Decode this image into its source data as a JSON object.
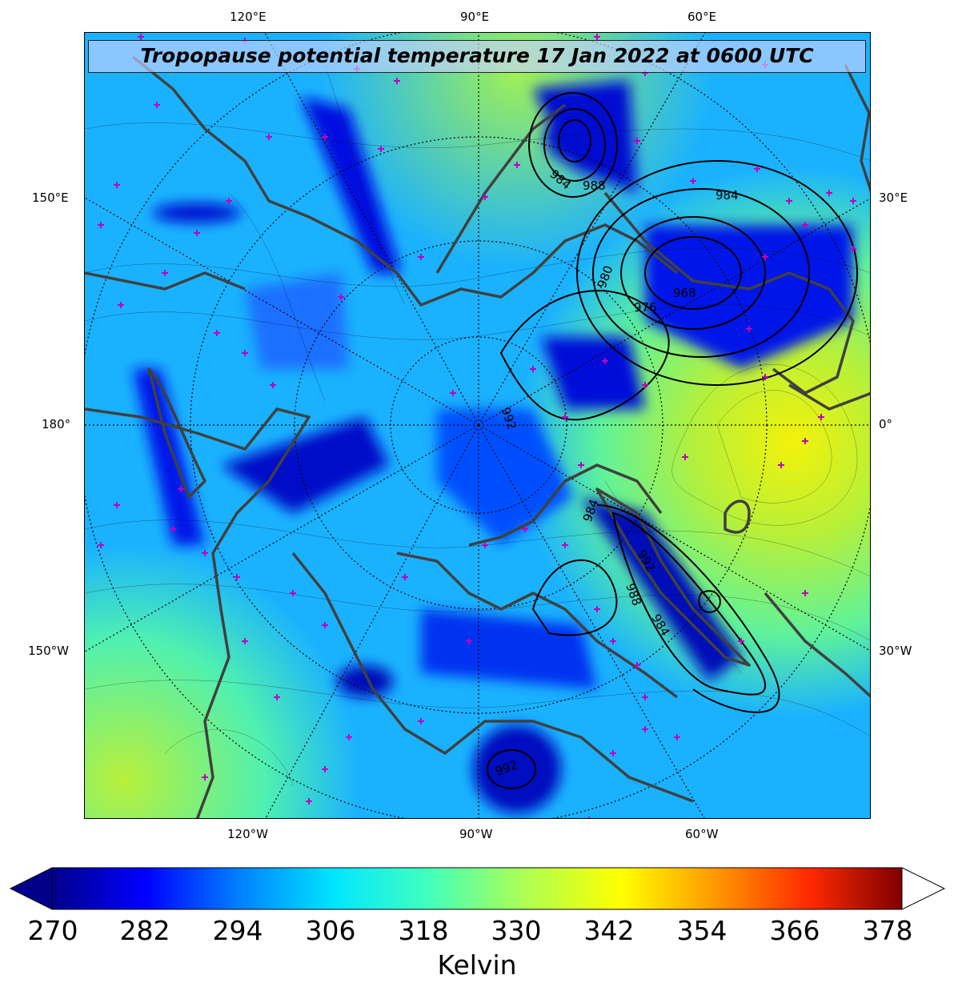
{
  "title": "Tropopause potential temperature 17 Jan 2022 at 0600 UTC",
  "longitude_labels": {
    "top": [
      "120°E",
      "90°E",
      "60°E"
    ],
    "bottom": [
      "120°W",
      "90°W",
      "60°W"
    ],
    "left": [
      "150°E",
      "180°",
      "150°W"
    ],
    "right": [
      "30°E",
      "0°",
      "30°W"
    ]
  },
  "isobar_labels": [
    "984",
    "988",
    "984",
    "980",
    "976",
    "968",
    "992",
    "984",
    "992",
    "988",
    "984",
    "992"
  ],
  "colorbar": {
    "ticks": [
      "270",
      "282",
      "294",
      "306",
      "318",
      "330",
      "342",
      "354",
      "366",
      "378"
    ],
    "label": "Kelvin",
    "colors": [
      "#00008b",
      "#0000ff",
      "#0080ff",
      "#00e5ff",
      "#40ffbf",
      "#b0ff4f",
      "#ffff00",
      "#ff9900",
      "#ff2a00",
      "#800000"
    ]
  }
}
